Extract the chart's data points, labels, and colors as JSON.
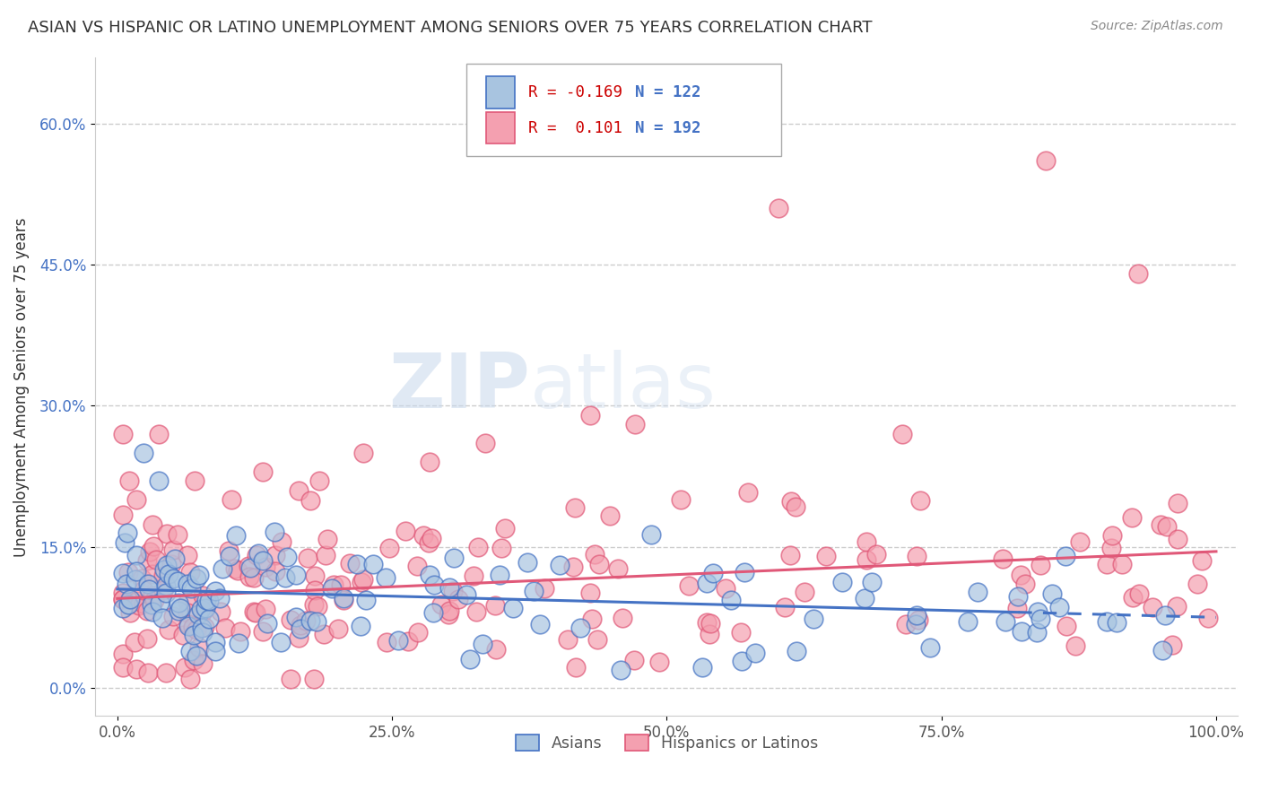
{
  "title": "ASIAN VS HISPANIC OR LATINO UNEMPLOYMENT AMONG SENIORS OVER 75 YEARS CORRELATION CHART",
  "source": "Source: ZipAtlas.com",
  "xlabel_ticks": [
    "0.0%",
    "25.0%",
    "50.0%",
    "75.0%",
    "100.0%"
  ],
  "xlabel_tick_vals": [
    0,
    25,
    50,
    75,
    100
  ],
  "ylabel": "Unemployment Among Seniors over 75 years",
  "ylabel_ticks": [
    "0.0%",
    "15.0%",
    "30.0%",
    "45.0%",
    "60.0%"
  ],
  "ylabel_tick_vals": [
    0,
    15,
    30,
    45,
    60
  ],
  "xlim": [
    -2,
    102
  ],
  "ylim": [
    -3,
    67
  ],
  "legend_r_asian": "-0.169",
  "legend_n_asian": "122",
  "legend_r_hispanic": "0.101",
  "legend_n_hispanic": "192",
  "color_asian": "#a8c4e0",
  "color_hispanic": "#f4a0b0",
  "color_asian_line": "#4472c4",
  "color_hispanic_line": "#e05878",
  "watermark_zip": "ZIP",
  "watermark_atlas": "atlas",
  "background_color": "#ffffff",
  "grid_color": "#cccccc",
  "asian_trend_x0": 0,
  "asian_trend_y0": 10.5,
  "asian_trend_x1": 100,
  "asian_trend_y1": 7.5,
  "hispanic_trend_x0": 0,
  "hispanic_trend_y0": 9.5,
  "hispanic_trend_x1": 100,
  "hispanic_trend_y1": 14.5,
  "asian_dashed_start": 82
}
